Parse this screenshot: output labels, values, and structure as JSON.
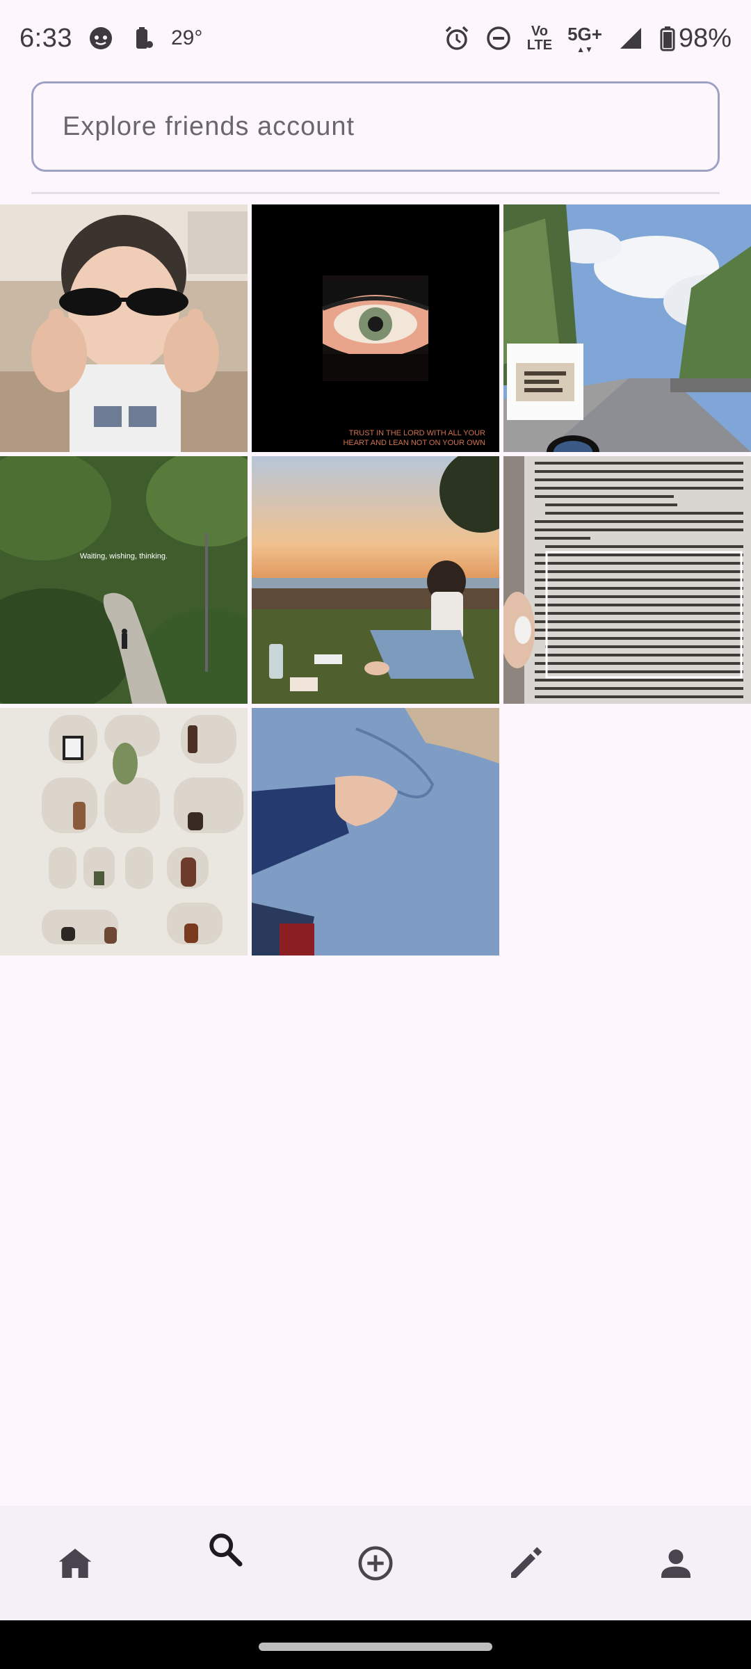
{
  "status_bar": {
    "time": "6:33",
    "temperature": "29°",
    "battery": "98%",
    "volte_top": "Vo",
    "volte_bottom": "LTE",
    "network": "5G+",
    "icons": [
      "face-icon",
      "battery-saver-icon",
      "alarm-icon",
      "dnd-icon",
      "volte-icon",
      "5g-icon",
      "signal-icon",
      "battery-icon"
    ]
  },
  "search": {
    "placeholder": "Explore friends account",
    "value": ""
  },
  "grid": {
    "tiles": [
      {
        "name": "photo-child-sunglasses",
        "caption": ""
      },
      {
        "name": "photo-eye-illustration",
        "caption_line1": "TRUST IN THE LORD WITH ALL YOUR",
        "caption_line2": "HEART AND LEAN NOT ON YOUR OWN"
      },
      {
        "name": "photo-road-trees",
        "caption": ""
      },
      {
        "name": "photo-forest-path",
        "caption": "Waiting, wishing, thinking."
      },
      {
        "name": "photo-sunset-sitting",
        "caption": ""
      },
      {
        "name": "photo-book-page",
        "caption": ""
      },
      {
        "name": "photo-shelf-niches",
        "caption": ""
      },
      {
        "name": "photo-denim-hand",
        "caption": ""
      }
    ]
  },
  "bottom_nav": {
    "items": [
      {
        "name": "home",
        "icon": "home-icon"
      },
      {
        "name": "search",
        "icon": "search-icon"
      },
      {
        "name": "add",
        "icon": "add-circle-icon"
      },
      {
        "name": "edit",
        "icon": "pencil-icon"
      },
      {
        "name": "profile",
        "icon": "person-icon"
      }
    ]
  },
  "colors": {
    "background": "#fdf7fd",
    "search_border": "#9ea0c4",
    "nav_background": "#f5eff7",
    "icon": "#49454f"
  }
}
